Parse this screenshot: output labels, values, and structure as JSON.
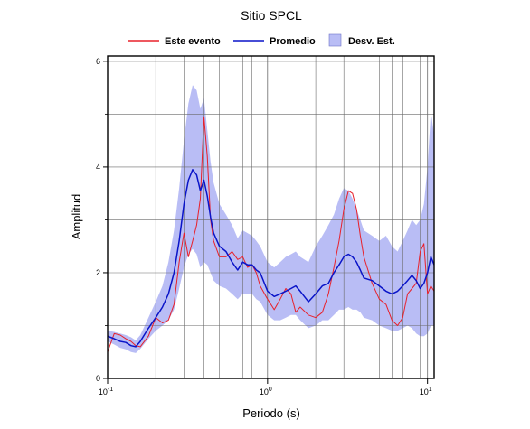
{
  "chart_data": {
    "type": "line",
    "title": "Sitio SPCL",
    "xlabel": "Periodo (s)",
    "ylabel": "Amplitud",
    "xscale": "log",
    "xlim": [
      0.1,
      11
    ],
    "ylim": [
      0,
      6.1
    ],
    "grid": true,
    "legend_position": "top",
    "x_ticks": [
      {
        "value": 0.1,
        "base": "10",
        "exp": "-1"
      },
      {
        "value": 1,
        "base": "10",
        "exp": "0"
      },
      {
        "value": 10,
        "base": "10",
        "exp": "1"
      }
    ],
    "y_ticks": [
      {
        "value": 0,
        "label": "0"
      },
      {
        "value": 2,
        "label": "2"
      },
      {
        "value": 4,
        "label": "4"
      },
      {
        "value": 6,
        "label": "6"
      }
    ],
    "series": [
      {
        "name": "Este evento",
        "color": "#e8202a",
        "x": [
          0.1,
          0.11,
          0.12,
          0.13,
          0.14,
          0.15,
          0.16,
          0.18,
          0.2,
          0.22,
          0.24,
          0.26,
          0.28,
          0.3,
          0.32,
          0.34,
          0.36,
          0.38,
          0.4,
          0.42,
          0.44,
          0.46,
          0.5,
          0.55,
          0.6,
          0.65,
          0.7,
          0.75,
          0.8,
          0.85,
          0.9,
          1.0,
          1.1,
          1.2,
          1.3,
          1.4,
          1.5,
          1.6,
          1.8,
          2.0,
          2.2,
          2.4,
          2.6,
          2.8,
          3.0,
          3.2,
          3.4,
          3.6,
          3.8,
          4.0,
          4.5,
          5.0,
          5.5,
          6.0,
          6.5,
          7.0,
          7.5,
          8.0,
          8.5,
          9.0,
          9.5,
          10.0,
          10.5,
          11.0
        ],
        "y": [
          0.5,
          0.85,
          0.82,
          0.75,
          0.7,
          0.62,
          0.6,
          0.8,
          1.15,
          1.05,
          1.1,
          1.4,
          2.2,
          2.75,
          2.3,
          2.6,
          2.9,
          3.4,
          4.95,
          4.2,
          3.0,
          2.6,
          2.3,
          2.3,
          2.4,
          2.25,
          2.3,
          2.1,
          2.15,
          2.0,
          1.75,
          1.5,
          1.3,
          1.5,
          1.7,
          1.6,
          1.25,
          1.35,
          1.2,
          1.15,
          1.25,
          1.6,
          2.1,
          2.6,
          3.2,
          3.55,
          3.5,
          3.2,
          2.7,
          2.3,
          1.8,
          1.5,
          1.4,
          1.1,
          1.0,
          1.15,
          1.6,
          1.7,
          1.8,
          2.4,
          2.55,
          1.6,
          1.75,
          1.65
        ]
      },
      {
        "name": "Promedio",
        "color": "#0a14c8",
        "x": [
          0.1,
          0.11,
          0.12,
          0.13,
          0.14,
          0.15,
          0.16,
          0.18,
          0.2,
          0.22,
          0.24,
          0.26,
          0.28,
          0.3,
          0.32,
          0.34,
          0.36,
          0.38,
          0.4,
          0.42,
          0.44,
          0.46,
          0.5,
          0.55,
          0.6,
          0.65,
          0.7,
          0.75,
          0.8,
          0.85,
          0.9,
          1.0,
          1.1,
          1.2,
          1.3,
          1.4,
          1.5,
          1.6,
          1.8,
          2.0,
          2.2,
          2.4,
          2.6,
          2.8,
          3.0,
          3.2,
          3.4,
          3.6,
          3.8,
          4.0,
          4.5,
          5.0,
          5.5,
          6.0,
          6.5,
          7.0,
          7.5,
          8.0,
          8.5,
          9.0,
          9.5,
          10.0,
          10.5,
          11.0
        ],
        "y": [
          0.8,
          0.75,
          0.7,
          0.68,
          0.62,
          0.6,
          0.7,
          0.95,
          1.15,
          1.35,
          1.6,
          2.0,
          2.6,
          3.3,
          3.75,
          3.95,
          3.85,
          3.55,
          3.75,
          3.45,
          3.05,
          2.75,
          2.5,
          2.4,
          2.2,
          2.05,
          2.2,
          2.15,
          2.15,
          2.05,
          2.0,
          1.65,
          1.55,
          1.6,
          1.65,
          1.7,
          1.75,
          1.65,
          1.45,
          1.6,
          1.75,
          1.8,
          2.0,
          2.15,
          2.3,
          2.35,
          2.3,
          2.2,
          2.05,
          1.9,
          1.85,
          1.75,
          1.65,
          1.6,
          1.65,
          1.75,
          1.85,
          1.95,
          1.85,
          1.7,
          1.8,
          2.0,
          2.3,
          2.15
        ]
      }
    ],
    "band": {
      "name": "Desv. Est.",
      "color": "#b9bdf5",
      "x": [
        0.1,
        0.11,
        0.12,
        0.13,
        0.14,
        0.15,
        0.16,
        0.18,
        0.2,
        0.22,
        0.24,
        0.26,
        0.28,
        0.3,
        0.32,
        0.34,
        0.36,
        0.38,
        0.4,
        0.42,
        0.44,
        0.46,
        0.5,
        0.55,
        0.6,
        0.65,
        0.7,
        0.75,
        0.8,
        0.85,
        0.9,
        1.0,
        1.1,
        1.2,
        1.3,
        1.4,
        1.5,
        1.6,
        1.8,
        2.0,
        2.2,
        2.4,
        2.6,
        2.8,
        3.0,
        3.2,
        3.4,
        3.6,
        3.8,
        4.0,
        4.5,
        5.0,
        5.5,
        6.0,
        6.5,
        7.0,
        7.5,
        8.0,
        8.5,
        9.0,
        9.5,
        10.0,
        10.5,
        11.0
      ],
      "upper": [
        0.9,
        0.88,
        0.85,
        0.82,
        0.78,
        0.72,
        0.82,
        1.15,
        1.45,
        1.75,
        2.2,
        2.8,
        3.6,
        4.5,
        5.2,
        5.55,
        5.45,
        5.1,
        5.3,
        4.7,
        4.1,
        3.7,
        3.3,
        3.1,
        2.9,
        2.65,
        2.8,
        2.75,
        2.7,
        2.6,
        2.5,
        2.2,
        2.1,
        2.2,
        2.3,
        2.35,
        2.4,
        2.3,
        2.2,
        2.5,
        2.7,
        2.9,
        3.1,
        3.4,
        3.6,
        3.55,
        3.4,
        3.2,
        3.0,
        2.8,
        2.7,
        2.6,
        2.7,
        2.5,
        2.4,
        2.6,
        2.8,
        3.0,
        2.9,
        3.0,
        3.3,
        4.0,
        5.05,
        4.6
      ],
      "lower": [
        0.7,
        0.64,
        0.58,
        0.55,
        0.5,
        0.48,
        0.56,
        0.75,
        0.9,
        1.0,
        1.1,
        1.3,
        1.7,
        2.1,
        2.35,
        2.45,
        2.35,
        2.1,
        2.2,
        2.15,
        2.0,
        1.85,
        1.75,
        1.7,
        1.6,
        1.5,
        1.6,
        1.6,
        1.6,
        1.5,
        1.45,
        1.2,
        1.1,
        1.1,
        1.15,
        1.2,
        1.2,
        1.1,
        0.95,
        1.0,
        1.1,
        1.1,
        1.2,
        1.3,
        1.3,
        1.35,
        1.3,
        1.3,
        1.25,
        1.15,
        1.1,
        1.0,
        0.95,
        0.9,
        0.9,
        0.95,
        1.0,
        0.95,
        0.85,
        0.8,
        0.8,
        0.85,
        1.0,
        1.0
      ]
    }
  }
}
